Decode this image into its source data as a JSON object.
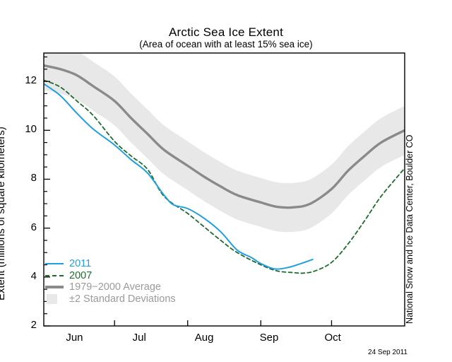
{
  "header": {
    "title": "Arctic Sea Ice Extent",
    "subtitle": "(Area of ocean with at least 15% sea ice)"
  },
  "credit_text": "National Snow and Ice Data Center, Boulder CO",
  "date_stamp": "24 Sep 2011",
  "legend": {
    "items": [
      {
        "label": "2011",
        "style": "solid",
        "color": "#1f9fdf",
        "text_color": "#1f9fdf"
      },
      {
        "label": "2007",
        "style": "dashed",
        "color": "#1e6b30",
        "text_color": "#1e6b30"
      },
      {
        "label": "1979−2000 Average",
        "style": "thick",
        "color": "#8a8a8a",
        "text_color": "#9a9a9a"
      },
      {
        "label": "±2 Standard Deviations",
        "style": "band",
        "color": "#e8e8e8",
        "text_color": "#9a9a9a"
      }
    ]
  },
  "chart_data": {
    "type": "line",
    "title": "Arctic Sea Ice Extent",
    "subtitle": "(Area of ocean with at least 15% sea ice)",
    "xlabel": "",
    "ylabel": "Extent (millions of square kilometers)",
    "x_unit": "days since Jun 1",
    "xlim_days": [
      0,
      153
    ],
    "ylim": [
      2,
      13.16
    ],
    "grid": false,
    "frame": true,
    "y_ticks_major": [
      2,
      4,
      6,
      8,
      10,
      12
    ],
    "y_tick_minor_step": 0.5,
    "x_ticks_major_days": [
      30,
      61,
      92,
      122
    ],
    "x_month_labels": [
      {
        "label": "Jun",
        "day": 13
      },
      {
        "label": "Jul",
        "day": 40.5
      },
      {
        "label": "Aug",
        "day": 68
      },
      {
        "label": "Sep",
        "day": 95.5
      },
      {
        "label": "Oct",
        "day": 122.5
      }
    ],
    "band": {
      "name": "±2 Standard Deviations",
      "around_series": "1979−2000 Average",
      "halfwidth": 1.0,
      "color": "#e8e8e8"
    },
    "series": [
      {
        "name": "1979−2000 Average",
        "color": "#8a8a8a",
        "line_style": "solid",
        "line_width": 3.4,
        "x": [
          0,
          7,
          14,
          21,
          30,
          37,
          44,
          51,
          61,
          68,
          75,
          82,
          92,
          99,
          106,
          113,
          122,
          129,
          136,
          143,
          153
        ],
        "values": [
          12.65,
          12.5,
          12.25,
          11.8,
          11.2,
          10.5,
          9.85,
          9.2,
          8.55,
          8.1,
          7.7,
          7.35,
          7.05,
          6.87,
          6.85,
          7.0,
          7.6,
          8.35,
          8.95,
          9.5,
          10.0
        ]
      },
      {
        "name": "2007",
        "color": "#1e6b30",
        "line_style": "dashed",
        "line_width": 1.8,
        "x": [
          0,
          7,
          14,
          21,
          30,
          37,
          44,
          51,
          61,
          68,
          75,
          82,
          92,
          99,
          106,
          110,
          115,
          122,
          129,
          136,
          143,
          153
        ],
        "values": [
          12.05,
          11.77,
          11.2,
          10.6,
          9.55,
          8.95,
          8.4,
          7.3,
          6.6,
          6.05,
          5.5,
          5.0,
          4.5,
          4.25,
          4.18,
          4.16,
          4.25,
          4.6,
          5.35,
          6.3,
          7.3,
          8.45
        ]
      },
      {
        "name": "2011",
        "color": "#1f9fdf",
        "line_style": "solid",
        "line_width": 2,
        "x": [
          0,
          7,
          14,
          21,
          30,
          37,
          44,
          51,
          55,
          61,
          68,
          75,
          82,
          88,
          92,
          98,
          104,
          109,
          114
        ],
        "values": [
          11.9,
          11.42,
          10.7,
          10.05,
          9.4,
          8.8,
          8.25,
          7.35,
          6.95,
          6.8,
          6.4,
          5.85,
          5.1,
          4.8,
          4.55,
          4.33,
          4.4,
          4.55,
          4.72
        ]
      }
    ]
  }
}
